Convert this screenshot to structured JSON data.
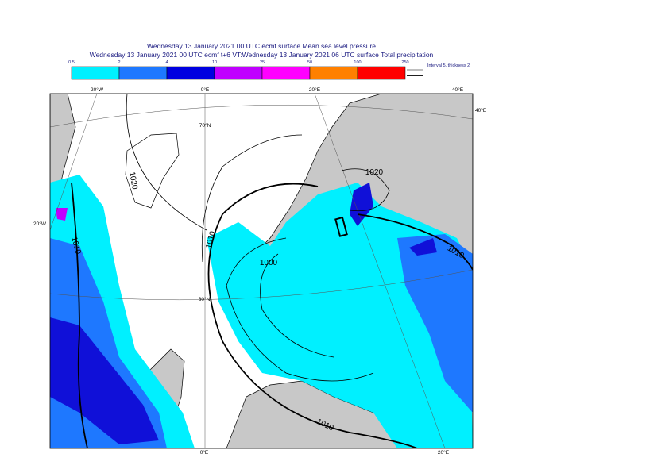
{
  "header": {
    "line1": "Wednesday 13 January 2021 00 UTC ecmf surface  Mean sea level pressure",
    "line2": "Wednesday 13 January 2021 00 UTC ecmf t+6 VT:Wednesday 13 January 2021 06 UTC surface  Total precipitation"
  },
  "colorbar": {
    "labels": [
      "0.5",
      "2",
      "4",
      "10",
      "25",
      "50",
      "100",
      "250"
    ],
    "colors": [
      "#00f0ff",
      "#1e78ff",
      "#0000e0",
      "#c000ff",
      "#ff00ff",
      "#ff8000",
      "#ff0000"
    ]
  },
  "legend": {
    "isobar_note": "Interval 5, thickness 2"
  },
  "map": {
    "graticule_labels": [
      "20°W",
      "0°E",
      "20°E",
      "40°E",
      "40°E",
      "70°N",
      "20°W",
      "60°N",
      "0°E",
      "20°E"
    ],
    "isobar_labels": [
      "1020",
      "1020",
      "1010",
      "1010",
      "1000",
      "1010",
      "1010"
    ]
  }
}
